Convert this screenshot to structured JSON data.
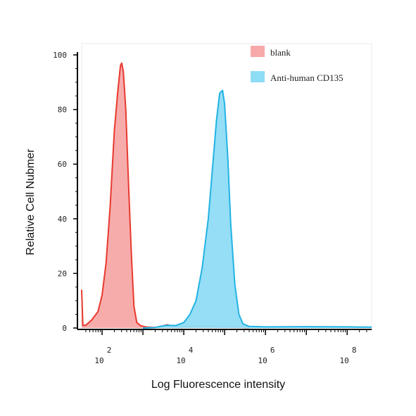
{
  "chart_data": {
    "type": "area",
    "xlabel": "Log Fluorescence intensity",
    "ylabel": "Relative Cell Nubmer",
    "x_scale": "log",
    "xlim_log10": [
      1.5,
      8.6
    ],
    "ylim": [
      0,
      100
    ],
    "y_ticks": [
      "0",
      "20",
      "40",
      "60",
      "80",
      "100"
    ],
    "y_tick_values": [
      0,
      20,
      40,
      60,
      80,
      100
    ],
    "x_ticks": [
      {
        "base": "10",
        "exp": "2",
        "log10": 2
      },
      {
        "base": "10",
        "exp": "4",
        "log10": 4
      },
      {
        "base": "10",
        "exp": "6",
        "log10": 6
      },
      {
        "base": "10",
        "exp": "8",
        "log10": 8
      }
    ],
    "legend_position": "top-right",
    "grid": false,
    "series": [
      {
        "name": "blank",
        "fill": "#f7a8a8",
        "stroke": "#e8392f",
        "points": [
          [
            1.5,
            14
          ],
          [
            1.53,
            1
          ],
          [
            1.6,
            1
          ],
          [
            1.75,
            3
          ],
          [
            1.9,
            6
          ],
          [
            2.0,
            12
          ],
          [
            2.1,
            24
          ],
          [
            2.2,
            45
          ],
          [
            2.3,
            72
          ],
          [
            2.38,
            86
          ],
          [
            2.45,
            96
          ],
          [
            2.48,
            97
          ],
          [
            2.52,
            94
          ],
          [
            2.58,
            80
          ],
          [
            2.65,
            52
          ],
          [
            2.72,
            26
          ],
          [
            2.78,
            8
          ],
          [
            2.85,
            2
          ],
          [
            2.95,
            0.8
          ],
          [
            3.1,
            0.3
          ],
          [
            3.3,
            0.2
          ],
          [
            3.5,
            0.8
          ],
          [
            3.6,
            1.2
          ],
          [
            3.7,
            0.6
          ],
          [
            3.9,
            0.3
          ],
          [
            4.1,
            0.5
          ],
          [
            4.4,
            0.5
          ],
          [
            4.8,
            0.5
          ],
          [
            5.2,
            0.3
          ],
          [
            5.6,
            0.2
          ]
        ]
      },
      {
        "name": "Anti-human CD135",
        "fill": "#8fdcf5",
        "stroke": "#22b3e3",
        "points": [
          [
            3.0,
            0
          ],
          [
            3.3,
            0.2
          ],
          [
            3.5,
            0.8
          ],
          [
            3.6,
            1.0
          ],
          [
            3.8,
            0.9
          ],
          [
            4.0,
            2
          ],
          [
            4.15,
            5
          ],
          [
            4.3,
            10
          ],
          [
            4.45,
            22
          ],
          [
            4.6,
            40
          ],
          [
            4.7,
            58
          ],
          [
            4.8,
            76
          ],
          [
            4.88,
            86
          ],
          [
            4.95,
            87
          ],
          [
            5.0,
            82
          ],
          [
            5.08,
            62
          ],
          [
            5.15,
            38
          ],
          [
            5.25,
            16
          ],
          [
            5.35,
            5
          ],
          [
            5.45,
            1.5
          ],
          [
            5.6,
            0.6
          ],
          [
            6.0,
            0.4
          ],
          [
            7.0,
            0.5
          ],
          [
            8.0,
            0.4
          ],
          [
            8.6,
            0.3
          ]
        ]
      }
    ]
  }
}
